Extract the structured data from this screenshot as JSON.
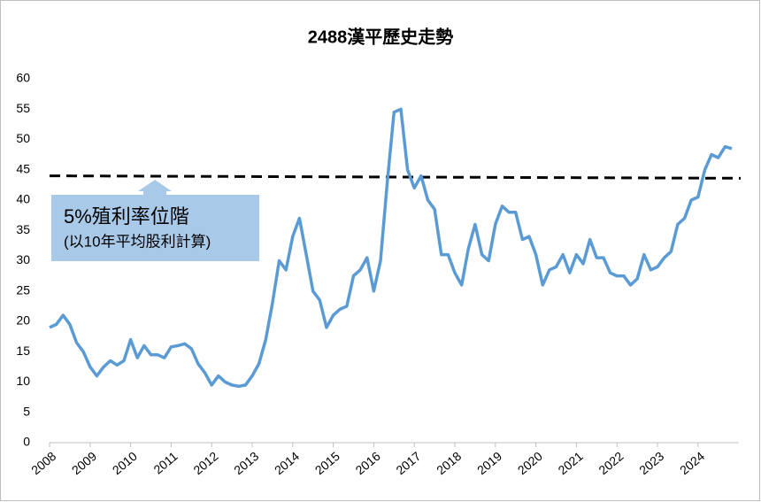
{
  "chart_data": {
    "type": "line",
    "title": "2488漢平歷史走勢",
    "categories": [
      "2008",
      null,
      null,
      null,
      null,
      null,
      "2009",
      null,
      null,
      null,
      null,
      null,
      "2010",
      null,
      null,
      null,
      null,
      null,
      "2011",
      null,
      null,
      null,
      null,
      null,
      "2012",
      null,
      null,
      null,
      null,
      null,
      "2013",
      null,
      null,
      null,
      null,
      null,
      "2014",
      null,
      null,
      null,
      null,
      null,
      "2015",
      null,
      null,
      null,
      null,
      null,
      "2016",
      null,
      null,
      null,
      null,
      null,
      "2017",
      null,
      null,
      null,
      null,
      null,
      "2018",
      null,
      null,
      null,
      null,
      null,
      "2019",
      null,
      null,
      null,
      null,
      null,
      "2020",
      null,
      null,
      null,
      null,
      null,
      "2021",
      null,
      null,
      null,
      null,
      null,
      "2022",
      null,
      null,
      null,
      null,
      null,
      "2023",
      null,
      null,
      null,
      null,
      null,
      "2024",
      null,
      null,
      null,
      null,
      null
    ],
    "series": [
      {
        "name": "2488",
        "color": "#5b9bd5",
        "values": [
          19,
          19.5,
          21,
          19.5,
          16.5,
          15,
          12.5,
          11,
          12.5,
          13.5,
          12.8,
          13.5,
          17,
          14,
          16,
          14.5,
          14.5,
          14,
          15.8,
          16,
          16.3,
          15.5,
          13,
          11.5,
          9.5,
          11,
          10,
          9.5,
          9.3,
          9.5,
          11,
          13,
          17,
          23,
          30,
          28.5,
          34,
          37,
          31,
          25,
          23.5,
          19,
          21,
          22,
          22.5,
          27.5,
          28.5,
          30.5,
          25,
          30,
          43,
          54.5,
          55,
          45,
          42,
          44,
          40,
          38.5,
          31,
          31,
          28,
          26,
          32,
          36,
          31,
          30,
          36,
          39,
          38,
          38,
          33.5,
          34,
          31,
          26,
          28.5,
          29,
          31,
          28,
          31,
          29.5,
          33.5,
          30.5,
          30.5,
          28,
          27.5,
          27.5,
          26,
          27,
          31,
          28.5,
          29,
          30.5,
          31.5,
          36,
          37,
          40,
          40.5,
          45,
          47.5,
          47,
          48.8,
          48.5
        ]
      }
    ],
    "reference_line": {
      "values": [
        44,
        43.6
      ],
      "color": "#000000"
    },
    "annotation": {
      "title": "5%殖利率位階",
      "subtitle": "(以10年平均股利計算)",
      "color": "#a9c9e8"
    },
    "ylim": [
      0,
      60
    ],
    "yticks": [
      0,
      5,
      10,
      15,
      20,
      25,
      30,
      35,
      40,
      45,
      50,
      55,
      60
    ],
    "grid": false
  }
}
